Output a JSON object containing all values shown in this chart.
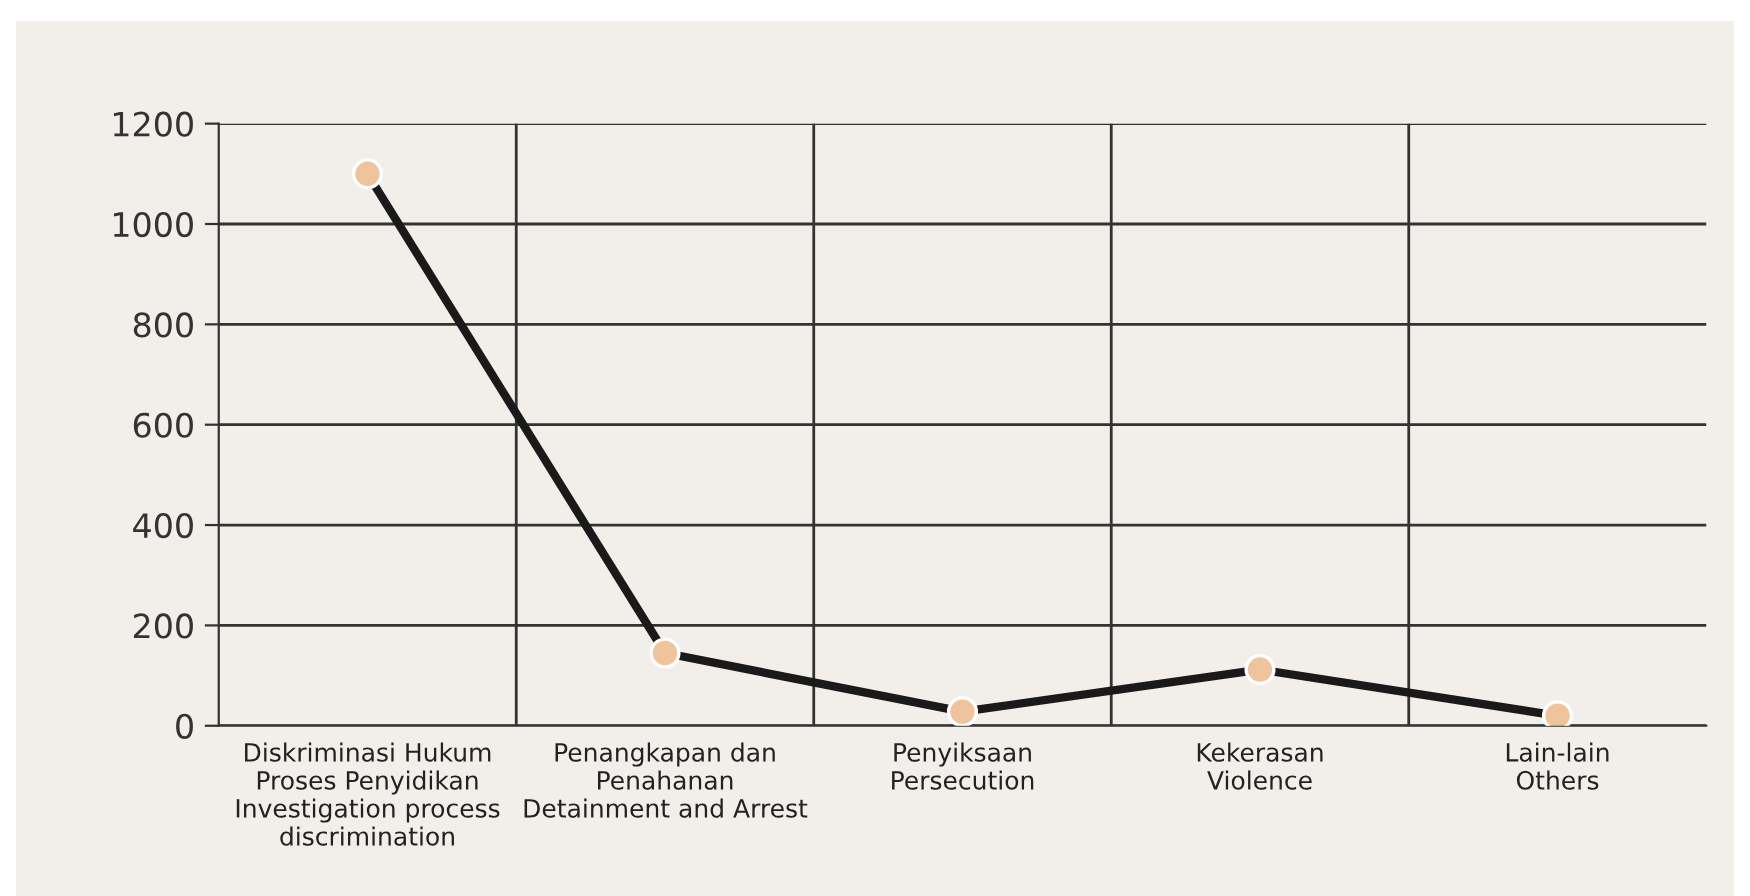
{
  "chart_data": {
    "type": "line",
    "categories": [
      "Diskriminasi Hukum\nProses Penyidikan\nInvestigation process\ndiscrimination",
      "Penangkapan dan\nPenahanan\nDetainment and Arrest",
      "Penyiksaan\nPersecution",
      "Kekerasan\nViolence",
      "Lain-lain\nOthers"
    ],
    "series": [
      {
        "color": "#1a1a1a",
        "values": [
          1100,
          145,
          28,
          112,
          20
        ]
      }
    ],
    "ylim": [
      0,
      1200
    ],
    "yticks": [
      0,
      200,
      400,
      600,
      800,
      1000,
      1200
    ],
    "grid": true,
    "marker": "circle",
    "line_style": "solid"
  }
}
